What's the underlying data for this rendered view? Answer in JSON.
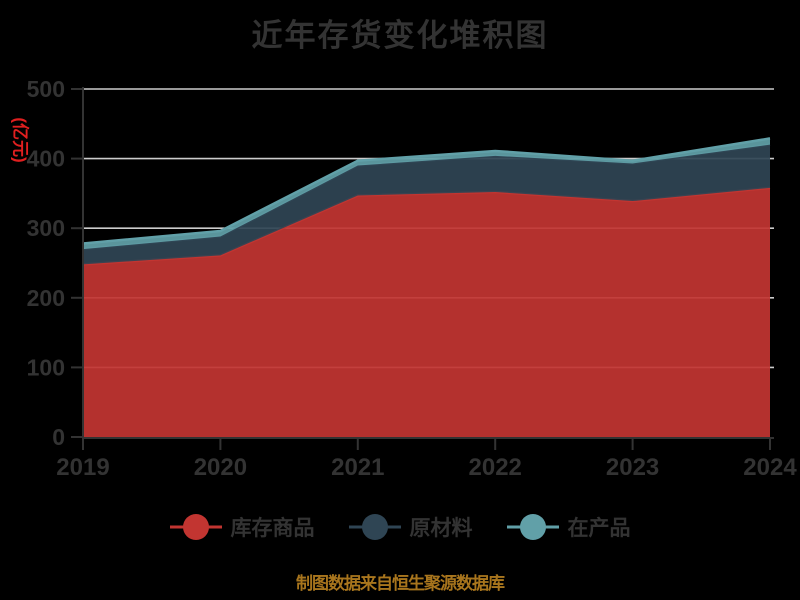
{
  "title": "近年存货变化堆积图",
  "footer": "制图数据来自恒生聚源数据库",
  "y_axis": {
    "name": "(亿元)",
    "name_color": "#e01f1f",
    "ticks": [
      0,
      100,
      200,
      300,
      400,
      500
    ]
  },
  "x_axis": {
    "ticks": [
      "2019",
      "2020",
      "2021",
      "2022",
      "2023",
      "2024"
    ]
  },
  "colors": {
    "background": "#000000",
    "text": "#333333",
    "grid": "#cccccc",
    "axis": "#333333",
    "footer_text": "#a8751d"
  },
  "chart_data": {
    "type": "area",
    "stacked": true,
    "title": "近年存货变化堆积图",
    "x": [
      2019,
      2020,
      2021,
      2022,
      2023,
      2024
    ],
    "series": [
      {
        "name": "库存商品",
        "color": "#c23531",
        "values": [
          248,
          261,
          347,
          352,
          339,
          358
        ]
      },
      {
        "name": "原材料",
        "color": "#2f4554",
        "values": [
          22,
          27,
          43,
          52,
          54,
          62
        ]
      },
      {
        "name": "在产品",
        "color": "#61a0a8",
        "values": [
          8,
          8,
          7,
          7,
          4,
          9
        ]
      }
    ],
    "ylabel": "(亿元)",
    "ylim": [
      0,
      500
    ],
    "yticks": [
      0,
      100,
      200,
      300,
      400,
      500
    ],
    "grid": true,
    "legend_position": "bottom"
  }
}
